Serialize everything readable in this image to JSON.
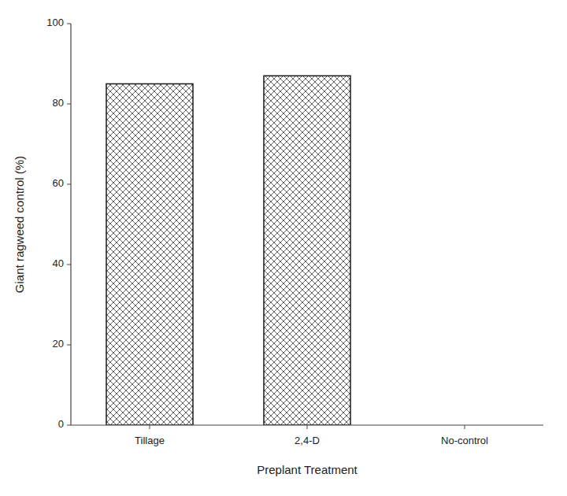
{
  "chart_data": {
    "type": "bar",
    "categories": [
      "Tillage",
      "2,4-D",
      "No-control"
    ],
    "values": [
      85.0,
      87.0,
      0.0
    ],
    "color": "#1a1a1a",
    "xlabel": "Preplant Treatment",
    "ylabel": "Giant ragweed control (%)",
    "ylim": [
      0,
      100
    ],
    "yticks": [
      0,
      20,
      40,
      60,
      80,
      100
    ],
    "grid": false
  }
}
